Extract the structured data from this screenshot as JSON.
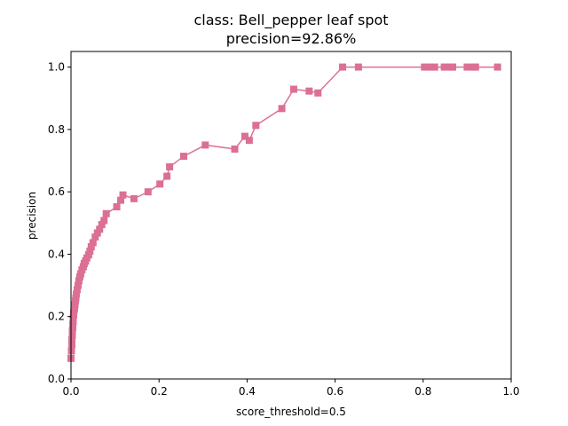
{
  "chart_data": {
    "type": "line",
    "title_line1": "class: Bell_pepper leaf spot",
    "title_line2": "precision=92.86%",
    "xlabel": "score_threshold=0.5",
    "ylabel": "precision",
    "xlim": [
      0.0,
      1.0
    ],
    "ylim": [
      0.0,
      1.05
    ],
    "xticks": [
      "0.0",
      "0.2",
      "0.4",
      "0.6",
      "0.8",
      "1.0"
    ],
    "yticks": [
      "0.0",
      "0.2",
      "0.4",
      "0.6",
      "0.8",
      "1.0"
    ],
    "grid": false,
    "legend": "none",
    "series": [
      {
        "color": "#db7093",
        "marker": "square",
        "x": [
          0.0,
          0.001,
          0.002,
          0.002,
          0.003,
          0.003,
          0.004,
          0.004,
          0.005,
          0.005,
          0.006,
          0.006,
          0.007,
          0.008,
          0.009,
          0.01,
          0.011,
          0.012,
          0.014,
          0.016,
          0.018,
          0.02,
          0.022,
          0.025,
          0.028,
          0.03,
          0.033,
          0.036,
          0.04,
          0.043,
          0.046,
          0.05,
          0.055,
          0.06,
          0.065,
          0.07,
          0.075,
          0.08,
          0.104,
          0.113,
          0.118,
          0.143,
          0.175,
          0.202,
          0.218,
          0.224,
          0.256,
          0.305,
          0.372,
          0.395,
          0.405,
          0.42,
          0.479,
          0.506,
          0.541,
          0.561,
          0.617,
          0.653,
          0.803,
          0.815,
          0.826,
          0.848,
          0.862,
          0.867,
          0.9,
          0.914,
          0.919,
          0.969
        ],
        "y": [
          0.066,
          0.09,
          0.11,
          0.125,
          0.14,
          0.155,
          0.165,
          0.175,
          0.185,
          0.195,
          0.205,
          0.212,
          0.22,
          0.228,
          0.238,
          0.25,
          0.26,
          0.272,
          0.286,
          0.3,
          0.315,
          0.327,
          0.337,
          0.35,
          0.36,
          0.37,
          0.378,
          0.388,
          0.398,
          0.41,
          0.424,
          0.437,
          0.455,
          0.468,
          0.48,
          0.495,
          0.508,
          0.53,
          0.552,
          0.573,
          0.59,
          0.578,
          0.6,
          0.625,
          0.65,
          0.68,
          0.714,
          0.75,
          0.737,
          0.778,
          0.765,
          0.813,
          0.867,
          0.929,
          0.923,
          0.917,
          1.0,
          1.0,
          1.0,
          1.0,
          1.0,
          1.0,
          1.0,
          1.0,
          1.0,
          1.0,
          1.0,
          1.0
        ]
      }
    ]
  }
}
